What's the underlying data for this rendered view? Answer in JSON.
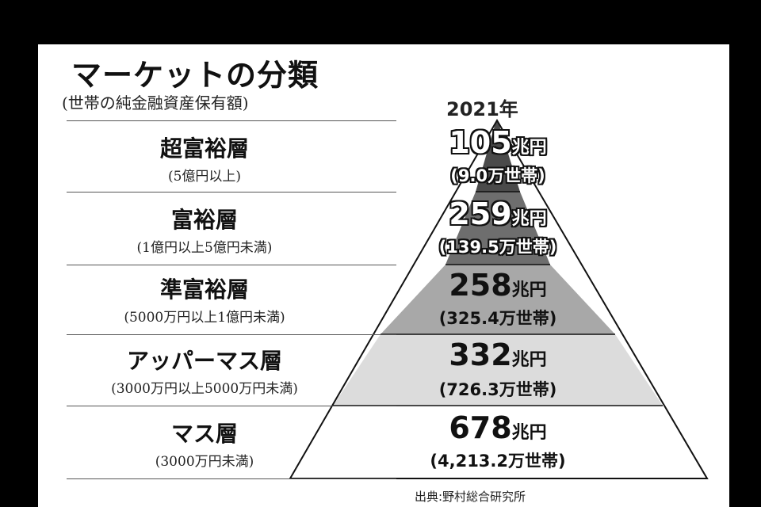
{
  "title": "マーケットの分類",
  "subtitle": "(世帯の純金融資産保有額)",
  "year": "2021年",
  "source": "出典:野村総合研究所",
  "colors": {
    "tier1": "#4a4a4a",
    "tier2": "#6e6e6e",
    "tier3": "#a8a8a8",
    "tier4": "#dcdcdc",
    "tier5": "#ffffff",
    "outline": "#111111"
  },
  "tiers": [
    {
      "name": "超富裕層",
      "range": "(5億円以上)",
      "amount": "105",
      "unit": "兆円",
      "households": "(9.0万世帯)"
    },
    {
      "name": "富裕層",
      "range": "(1億円以上5億円未満)",
      "amount": "259",
      "unit": "兆円",
      "households": "(139.5万世帯)"
    },
    {
      "name": "準富裕層",
      "range": "(5000万円以上1億円未満)",
      "amount": "258",
      "unit": "兆円",
      "households": "(325.4万世帯)"
    },
    {
      "name": "アッパーマス層",
      "range": "(3000万円以上5000万円未満)",
      "amount": "332",
      "unit": "兆円",
      "households": "(726.3万世帯)"
    },
    {
      "name": "マス層",
      "range": "(3000万円未満)",
      "amount": "678",
      "unit": "兆円",
      "households": "(4,213.2万世帯)"
    }
  ]
}
